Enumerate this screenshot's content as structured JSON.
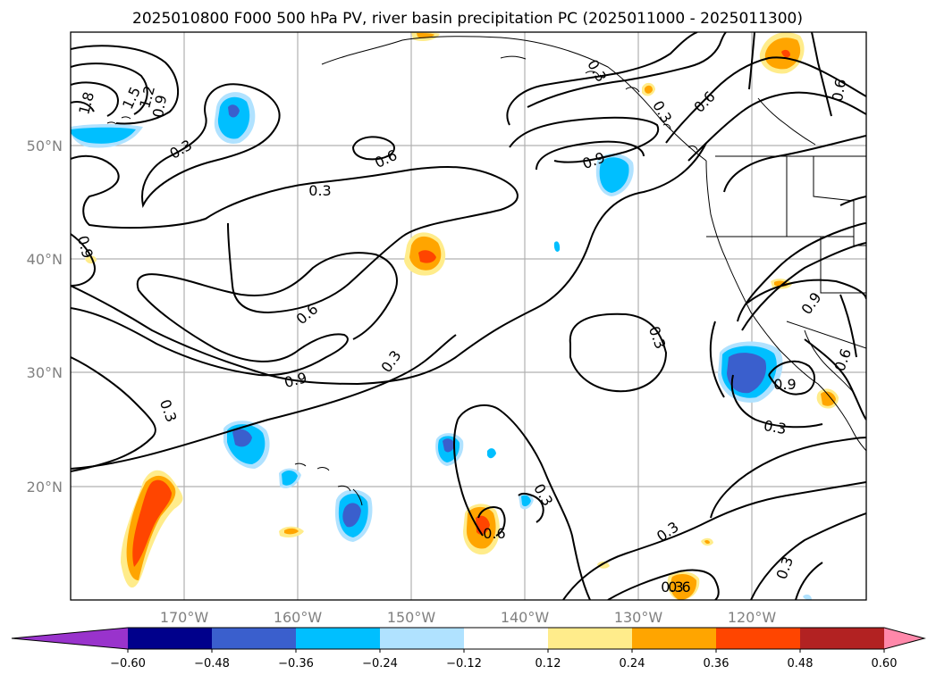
{
  "chart_data": {
    "type": "contour map",
    "title": "2025010800 F000 500 hPa PV, river basin precipitation PC (2025011000 - 2025011300)",
    "lon_ticks": [
      "170°W",
      "160°W",
      "150°W",
      "140°W",
      "130°W",
      "120°W"
    ],
    "lat_ticks": [
      "50°N",
      "40°N",
      "30°N",
      "20°N"
    ],
    "lon_range": [
      -180,
      -110
    ],
    "lat_range": [
      10,
      60
    ],
    "grid": true,
    "colorbar": {
      "ticks": [
        "-0.60",
        "-0.48",
        "-0.36",
        "-0.24",
        "-0.12",
        "0.12",
        "0.24",
        "0.36",
        "0.48",
        "0.60"
      ],
      "colors": [
        "#9933cc",
        "#00008b",
        "#3a5fcd",
        "#00bfff",
        "#b0e2ff",
        "#ffffff",
        "#ffec8b",
        "#ffa500",
        "#ff4500",
        "#b22222",
        "#ff88aa"
      ],
      "extend": "both"
    },
    "contour_labels": [
      "1.8",
      "1.5",
      "1.2",
      "0.9",
      "0.3",
      "0.6",
      "0.3",
      "0.9",
      "0.6",
      "0.6",
      "0.9",
      "0.6",
      "0.3",
      "0.9",
      "0.3",
      "0.3",
      "0.3",
      "0.6",
      "0.3",
      "0.3",
      "0.9",
      "0.6",
      "0.3",
      "0.9",
      "0.3",
      "0.3",
      "0.3",
      "0.6"
    ]
  }
}
